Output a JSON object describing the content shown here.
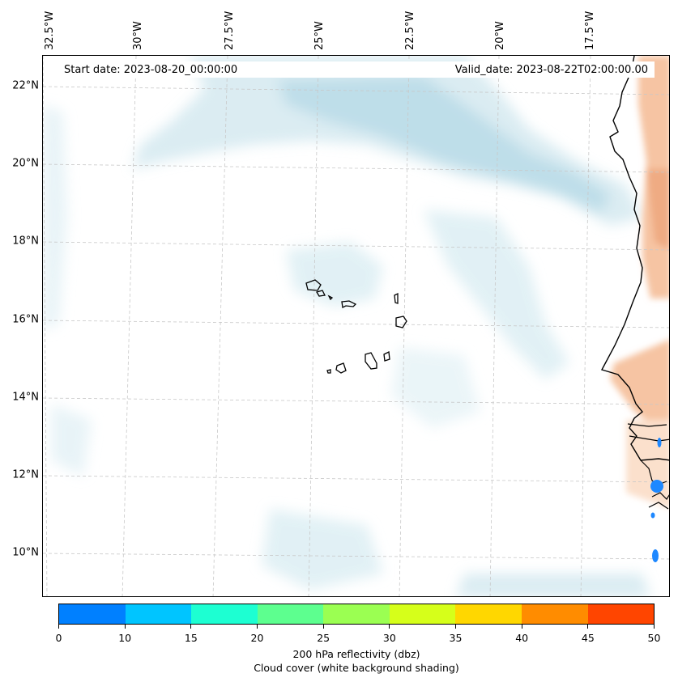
{
  "map": {
    "start_date": "Start date: 2023-08-20_00:00:00",
    "valid_date": "Valid_date: 2023-08-22T02:00:00.00",
    "longitude_labels": [
      "32.5°W",
      "30°W",
      "27.5°W",
      "25°W",
      "22.5°W",
      "20°W",
      "17.5°W"
    ],
    "latitude_labels": [
      "22°N",
      "20°N",
      "18°N",
      "16°N",
      "14°N",
      "12°N",
      "10°N"
    ],
    "colors": {
      "cloud": "#cfe6ee",
      "cloud_dense": "#a9d3e2",
      "land_warm": "#f6c4a3",
      "land_warm_dense": "#eea57a",
      "coast": "#000000",
      "grid": "#c8c8c8",
      "reflectivity_low": "#1e88ff"
    }
  },
  "colorbar": {
    "ticks": [
      "0",
      "10",
      "15",
      "20",
      "25",
      "30",
      "35",
      "40",
      "45",
      "50"
    ],
    "colors": [
      "#0080ff",
      "#00c5ff",
      "#1dffd2",
      "#5dff8f",
      "#9bff52",
      "#d6ff1a",
      "#ffd700",
      "#ff8c00",
      "#ff4500"
    ],
    "label_line1": "200 hPa reflectivity (dbz)",
    "label_line2": "Cloud cover (white background shading)"
  }
}
